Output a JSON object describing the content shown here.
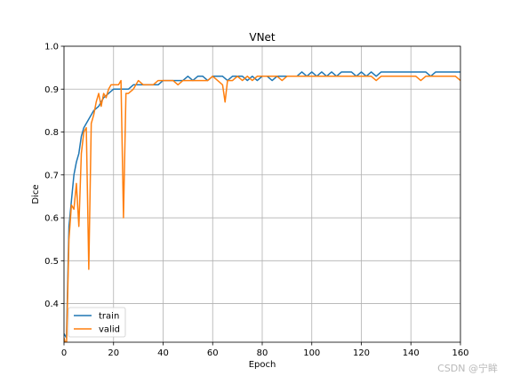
{
  "watermark": "CSDN @宁眸",
  "chart_data": {
    "type": "line",
    "title": "VNet",
    "xlabel": "Epoch",
    "ylabel": "Dice",
    "xlim": [
      0,
      160
    ],
    "ylim": [
      0.31,
      1.0
    ],
    "xticks": [
      0,
      20,
      40,
      60,
      80,
      100,
      120,
      140,
      160
    ],
    "yticks": [
      0.4,
      0.5,
      0.6,
      0.7,
      0.8,
      0.9,
      1.0
    ],
    "xtick_labels": [
      "0",
      "20",
      "40",
      "60",
      "80",
      "100",
      "120",
      "140",
      "160"
    ],
    "ytick_labels": [
      "0.4",
      "0.5",
      "0.6",
      "0.7",
      "0.8",
      "0.9",
      "1.0"
    ],
    "grid": true,
    "legend_position": "lower-left",
    "series": [
      {
        "name": "train",
        "color": "#1f77b4",
        "x": [
          0,
          1,
          2,
          3,
          4,
          5,
          6,
          7,
          8,
          9,
          10,
          12,
          14,
          16,
          18,
          20,
          22,
          24,
          26,
          28,
          30,
          32,
          34,
          36,
          38,
          40,
          42,
          44,
          46,
          48,
          50,
          52,
          54,
          56,
          58,
          60,
          62,
          64,
          66,
          68,
          70,
          72,
          74,
          76,
          78,
          80,
          82,
          84,
          86,
          88,
          90,
          92,
          94,
          96,
          98,
          100,
          102,
          104,
          106,
          108,
          110,
          112,
          114,
          116,
          118,
          120,
          122,
          124,
          126,
          128,
          130,
          132,
          134,
          136,
          138,
          140,
          142,
          144,
          146,
          148,
          150,
          152,
          154,
          156,
          158,
          160
        ],
        "y": [
          0.33,
          0.32,
          0.58,
          0.64,
          0.7,
          0.73,
          0.75,
          0.79,
          0.81,
          0.82,
          0.83,
          0.85,
          0.86,
          0.88,
          0.89,
          0.9,
          0.9,
          0.9,
          0.9,
          0.91,
          0.91,
          0.91,
          0.91,
          0.91,
          0.91,
          0.92,
          0.92,
          0.92,
          0.92,
          0.92,
          0.93,
          0.92,
          0.93,
          0.93,
          0.92,
          0.93,
          0.93,
          0.93,
          0.92,
          0.93,
          0.93,
          0.93,
          0.92,
          0.93,
          0.92,
          0.93,
          0.93,
          0.92,
          0.93,
          0.93,
          0.93,
          0.93,
          0.93,
          0.94,
          0.93,
          0.94,
          0.93,
          0.94,
          0.93,
          0.94,
          0.93,
          0.94,
          0.94,
          0.94,
          0.93,
          0.94,
          0.93,
          0.94,
          0.93,
          0.94,
          0.94,
          0.94,
          0.94,
          0.94,
          0.94,
          0.94,
          0.94,
          0.94,
          0.94,
          0.93,
          0.94,
          0.94,
          0.94,
          0.94,
          0.94,
          0.94
        ]
      },
      {
        "name": "valid",
        "color": "#ff7f0e",
        "x": [
          0,
          1,
          2,
          3,
          4,
          5,
          6,
          7,
          8,
          9,
          10,
          11,
          12,
          13,
          14,
          15,
          16,
          17,
          18,
          19,
          20,
          22,
          23,
          24,
          25,
          26,
          28,
          30,
          32,
          34,
          36,
          38,
          40,
          42,
          44,
          46,
          48,
          50,
          52,
          54,
          56,
          58,
          60,
          62,
          64,
          65,
          66,
          68,
          70,
          72,
          74,
          76,
          78,
          80,
          82,
          84,
          86,
          88,
          90,
          92,
          94,
          96,
          98,
          100,
          102,
          104,
          106,
          108,
          110,
          112,
          114,
          116,
          118,
          120,
          122,
          124,
          126,
          128,
          130,
          132,
          134,
          136,
          138,
          140,
          142,
          144,
          146,
          148,
          150,
          152,
          154,
          156,
          158,
          160
        ],
        "y": [
          0.32,
          0.3,
          0.55,
          0.63,
          0.62,
          0.68,
          0.58,
          0.75,
          0.8,
          0.81,
          0.48,
          0.82,
          0.84,
          0.87,
          0.89,
          0.86,
          0.89,
          0.88,
          0.9,
          0.91,
          0.91,
          0.91,
          0.92,
          0.6,
          0.89,
          0.89,
          0.9,
          0.92,
          0.91,
          0.91,
          0.91,
          0.92,
          0.92,
          0.92,
          0.92,
          0.91,
          0.92,
          0.92,
          0.92,
          0.92,
          0.92,
          0.92,
          0.93,
          0.92,
          0.91,
          0.87,
          0.92,
          0.92,
          0.93,
          0.92,
          0.93,
          0.92,
          0.93,
          0.93,
          0.93,
          0.93,
          0.93,
          0.92,
          0.93,
          0.93,
          0.93,
          0.93,
          0.93,
          0.93,
          0.93,
          0.93,
          0.93,
          0.93,
          0.93,
          0.93,
          0.93,
          0.93,
          0.93,
          0.93,
          0.93,
          0.93,
          0.92,
          0.93,
          0.93,
          0.93,
          0.93,
          0.93,
          0.93,
          0.93,
          0.93,
          0.92,
          0.93,
          0.93,
          0.93,
          0.93,
          0.93,
          0.93,
          0.93,
          0.92
        ]
      }
    ]
  }
}
